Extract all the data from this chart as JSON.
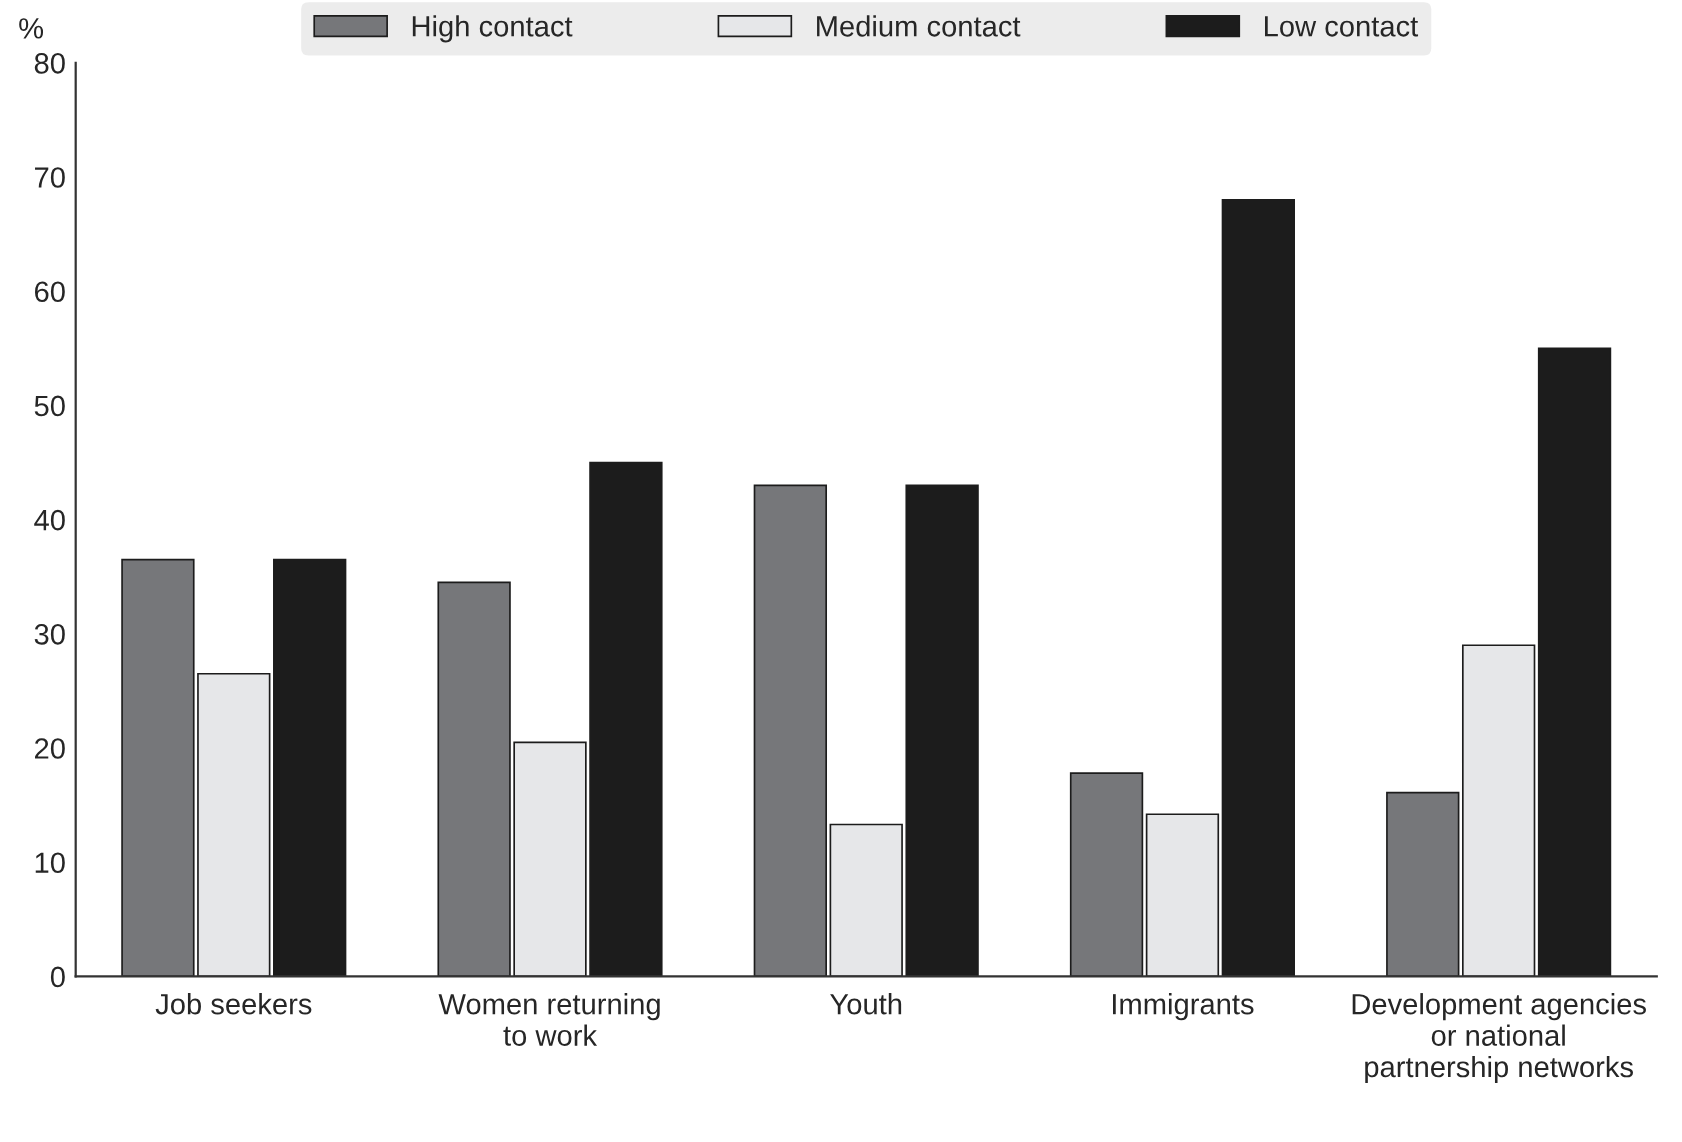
{
  "chart_data": {
    "type": "bar",
    "ylabel": "%",
    "categories": [
      "Job seekers",
      "Women returning\nto work",
      "Youth",
      "Immigrants",
      "Development agencies\nor national\npartnership networks"
    ],
    "series": [
      {
        "name": "High contact",
        "color": "#76777a",
        "values": [
          36.5,
          34.5,
          43,
          17.8,
          16.1
        ]
      },
      {
        "name": "Medium contact",
        "color": "#e6e7e9",
        "values": [
          26.5,
          20.5,
          13.3,
          14.2,
          29
        ]
      },
      {
        "name": "Low contact",
        "color": "#1c1c1c",
        "values": [
          36.5,
          45,
          43,
          68,
          55
        ]
      }
    ],
    "ylim": [
      0,
      80
    ],
    "yticks": [
      0,
      10,
      20,
      30,
      40,
      50,
      60,
      70,
      80
    ],
    "legend": "top",
    "grid": false
  }
}
